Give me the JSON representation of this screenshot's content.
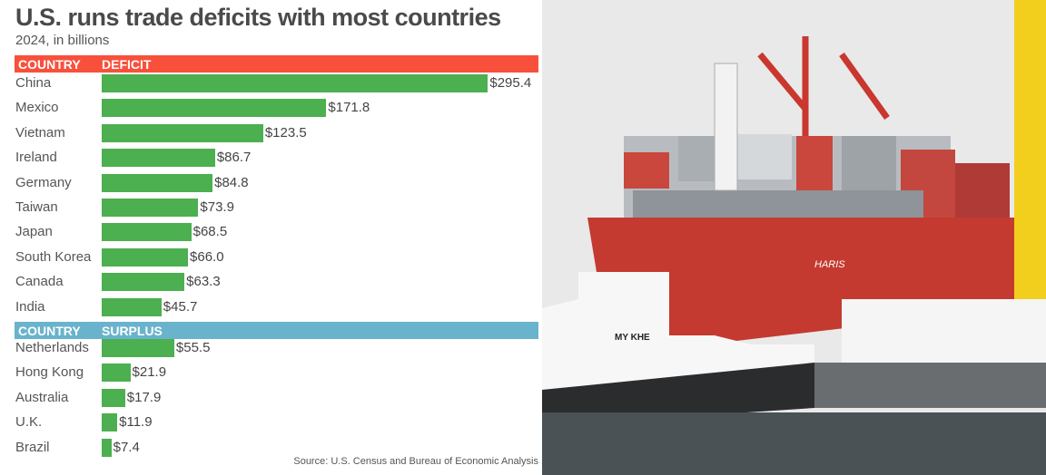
{
  "chart_data": {
    "type": "bar",
    "orientation": "horizontal",
    "title": "U.S. runs trade deficits with most countries",
    "subtitle": "2024, in billions",
    "source": "Source: U.S. Census and Bureau of Economic Analysis",
    "unit_prefix": "$",
    "groups": [
      {
        "header_country": "COUNTRY",
        "header_value": "DEFICIT",
        "header_color": "#f9503c",
        "categories": [
          "China",
          "Mexico",
          "Vietnam",
          "Ireland",
          "Germany",
          "Taiwan",
          "Japan",
          "South Korea",
          "Canada",
          "India"
        ],
        "values": [
          295.4,
          171.8,
          123.5,
          86.7,
          84.8,
          73.9,
          68.5,
          66.0,
          63.3,
          45.7
        ],
        "labels": [
          "$295.4",
          "$171.8",
          "$123.5",
          "$86.7",
          "$84.8",
          "$73.9",
          "$68.5",
          "$66.0",
          "$63.3",
          "$45.7"
        ]
      },
      {
        "header_country": "COUNTRY",
        "header_value": "SURPLUS",
        "header_color": "#69b3cc",
        "categories": [
          "Netherlands",
          "Hong Kong",
          "Australia",
          "U.K.",
          "Brazil"
        ],
        "values": [
          55.5,
          21.9,
          17.9,
          11.9,
          7.4
        ],
        "labels": [
          "$55.5",
          "$21.9",
          "$17.9",
          "$11.9",
          "$7.4"
        ]
      }
    ],
    "bar_color": "#4caf50",
    "grid": false,
    "legend": "none"
  },
  "photo": {
    "ship_name": "HARIS",
    "tug_name": "MY KHE"
  }
}
